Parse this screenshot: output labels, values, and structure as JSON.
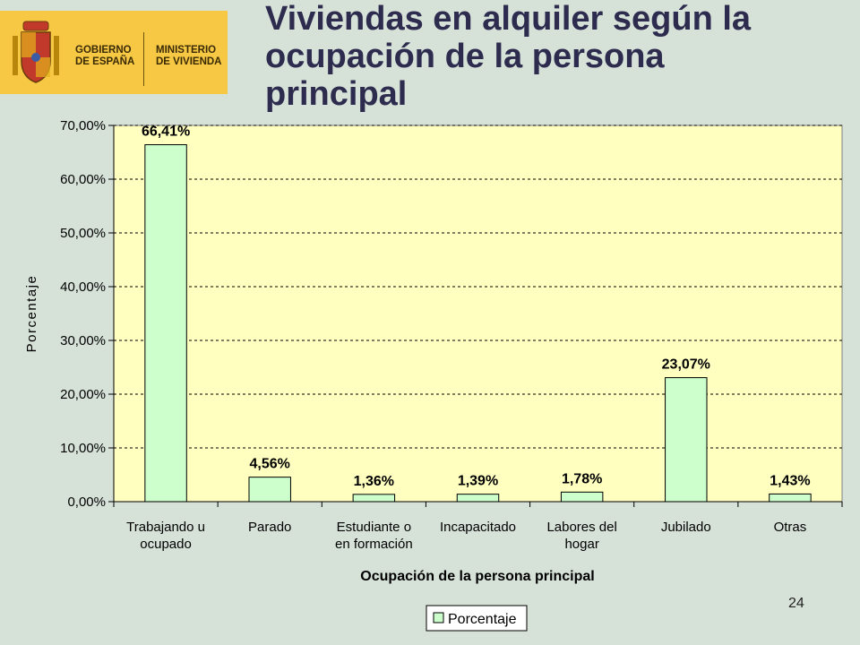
{
  "header": {
    "logo_left_line1": "GOBIERNO",
    "logo_left_line2": "DE ESPAÑA",
    "logo_right_line1": "MINISTERIO",
    "logo_right_line2": "DE VIVIENDA",
    "title_line1": "Viviendas en alquiler según  la",
    "title_line2": "ocupación de la persona",
    "title_line3": "principal"
  },
  "footer": {
    "page_number": "24"
  },
  "colors": {
    "plot_background": "#ffffc0",
    "bar_fill": "#ccffcc",
    "bar_stroke": "#000000",
    "logo_yellow": "#f6c844",
    "title_color": "#2d2b4e"
  },
  "chart_data": {
    "type": "bar",
    "title": "",
    "xlabel": "Ocupación de la persona principal",
    "ylabel": "Porcentaje",
    "ylim": [
      0,
      70
    ],
    "yticks": [
      0,
      10,
      20,
      30,
      40,
      50,
      60,
      70
    ],
    "ytick_labels": [
      "0,00%",
      "10,00%",
      "20,00%",
      "30,00%",
      "40,00%",
      "50,00%",
      "60,00%",
      "70,00%"
    ],
    "grid": true,
    "legend_position": "bottom",
    "categories": [
      [
        "Trabajando u",
        "ocupado"
      ],
      [
        "Parado"
      ],
      [
        "Estudiante o",
        "en formación"
      ],
      [
        "Incapacitado"
      ],
      [
        "Labores del",
        "hogar"
      ],
      [
        "Jubilado"
      ],
      [
        "Otras"
      ]
    ],
    "series": [
      {
        "name": "Porcentaje",
        "values": [
          66.41,
          4.56,
          1.36,
          1.39,
          1.78,
          23.07,
          1.43
        ],
        "labels": [
          "66,41%",
          "4,56%",
          "1,36%",
          "1,39%",
          "1,78%",
          "23,07%",
          "1,43%"
        ]
      }
    ]
  }
}
